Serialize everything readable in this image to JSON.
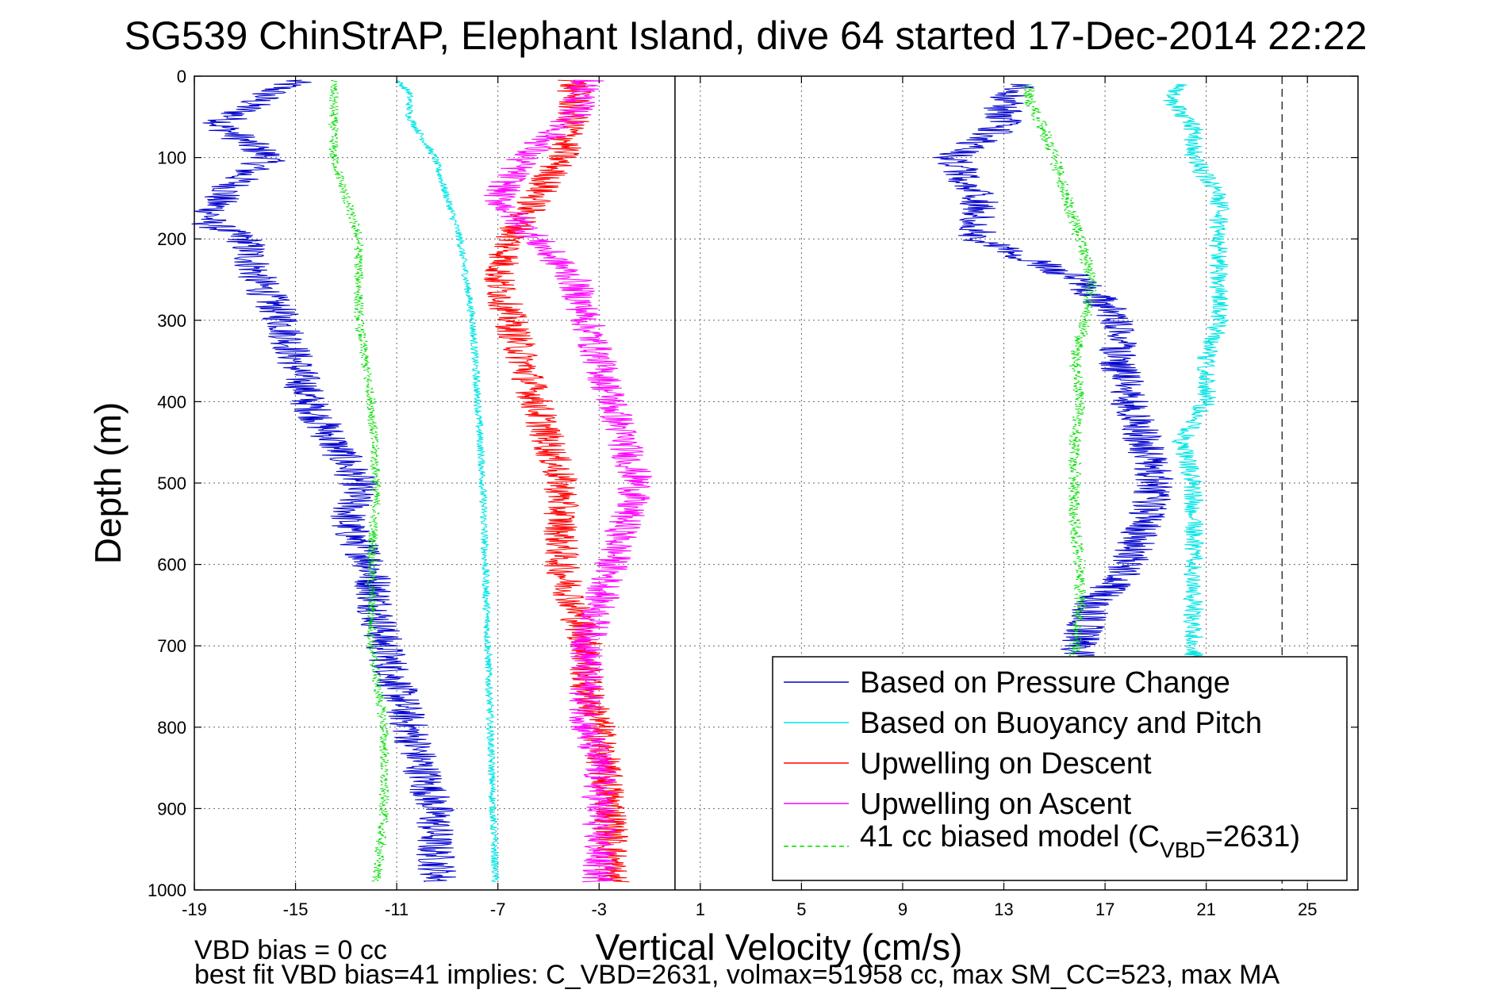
{
  "chart_data": {
    "type": "line",
    "title": "SG539 ChinStrAP, Elephant Island, dive 64 started 17-Dec-2014 22:22",
    "xlabel": "Vertical Velocity (cm/s)",
    "ylabel": "Depth (m)",
    "xlim": [
      -19,
      27
    ],
    "ylim": [
      0,
      1000
    ],
    "y_reversed": true,
    "grid": true,
    "x_ticks": [
      "-19",
      "-15",
      "-11",
      "-7",
      "-3",
      "1",
      "5",
      "9",
      "13",
      "17",
      "21",
      "25"
    ],
    "y_ticks": [
      "0",
      "100",
      "200",
      "300",
      "400",
      "500",
      "600",
      "700",
      "800",
      "900",
      "1000"
    ],
    "zero_line_x": 0,
    "dashed_reference_x": 24,
    "legend_position": "bottom-right",
    "legend": [
      {
        "label": "Based on Pressure Change",
        "color": "#0000cc",
        "dashed": false
      },
      {
        "label": "Based on Buoyancy and Pitch",
        "color": "#00e5e5",
        "dashed": false
      },
      {
        "label": "Upwelling on Descent",
        "color": "#ff0000",
        "dashed": false
      },
      {
        "label": "Upwelling on Ascent",
        "color": "#ff00ff",
        "dashed": false
      },
      {
        "label_main": "41 cc biased model (C",
        "label_sub": "VBD",
        "label_tail": "=2631)",
        "color": "#00dd00",
        "dashed": true
      }
    ],
    "series": [
      {
        "key": "pressure_descent",
        "color": "#0000cc",
        "noise": 0.8,
        "depth": [
          5,
          20,
          40,
          60,
          80,
          100,
          120,
          150,
          180,
          200,
          250,
          300,
          350,
          400,
          450,
          500,
          550,
          600,
          650,
          700,
          750,
          800,
          850,
          900,
          950,
          990
        ],
        "values": [
          -15,
          -16,
          -17,
          -18,
          -17,
          -16,
          -17,
          -18,
          -18.5,
          -17,
          -16.5,
          -15.5,
          -15,
          -14.5,
          -13.5,
          -12.5,
          -13,
          -12,
          -11.8,
          -11.5,
          -11,
          -10.5,
          -10,
          -9.5,
          -9.5,
          -9.3
        ]
      },
      {
        "key": "buoyancy_descent",
        "color": "#00e5e5",
        "noise": 0.15,
        "depth": [
          5,
          20,
          50,
          100,
          150,
          200,
          300,
          400,
          500,
          600,
          700,
          800,
          900,
          990
        ],
        "values": [
          -11,
          -10.5,
          -10.5,
          -9.5,
          -9,
          -8.5,
          -8,
          -7.8,
          -7.6,
          -7.5,
          -7.4,
          -7.3,
          -7.2,
          -7.1
        ]
      },
      {
        "key": "model_descent",
        "color": "#00dd00",
        "noise": 0.2,
        "dashed": true,
        "depth": [
          5,
          50,
          100,
          150,
          200,
          300,
          400,
          500,
          600,
          700,
          800,
          900,
          990
        ],
        "values": [
          -13.5,
          -13.5,
          -13.5,
          -13,
          -12.5,
          -12.5,
          -12,
          -11.8,
          -12,
          -12,
          -11.5,
          -11.5,
          -11.8
        ]
      },
      {
        "key": "upwelling_descent",
        "color": "#ff0000",
        "noise": 0.7,
        "depth": [
          5,
          50,
          100,
          150,
          200,
          250,
          300,
          350,
          400,
          450,
          500,
          550,
          600,
          650,
          700,
          750,
          800,
          850,
          900,
          950,
          990
        ],
        "values": [
          -4,
          -4,
          -4.5,
          -5.5,
          -6.5,
          -7,
          -6.5,
          -6,
          -5.5,
          -5,
          -4.5,
          -4.5,
          -4.5,
          -4,
          -3.5,
          -3.5,
          -3,
          -2.8,
          -2.5,
          -2.5,
          -2.5
        ]
      },
      {
        "key": "upwelling_ascent",
        "color": "#ff00ff",
        "noise": 0.7,
        "depth": [
          5,
          50,
          100,
          150,
          200,
          250,
          300,
          350,
          400,
          450,
          500,
          550,
          600,
          650,
          700,
          750,
          800,
          850,
          900,
          950,
          990
        ],
        "values": [
          -3.5,
          -4,
          -6,
          -7,
          -5.5,
          -4,
          -3.5,
          -3,
          -2.5,
          -2,
          -1.5,
          -2,
          -2.5,
          -3,
          -3.5,
          -3.5,
          -3.5,
          -3,
          -3,
          -3,
          -3
        ]
      },
      {
        "key": "pressure_ascent",
        "color": "#0000cc",
        "noise": 0.8,
        "depth": [
          720,
          700,
          650,
          600,
          550,
          500,
          450,
          400,
          350,
          300,
          250,
          200,
          150,
          100,
          60,
          30,
          10
        ],
        "values": [
          16,
          16,
          16.5,
          18,
          18.5,
          19,
          18.5,
          18,
          17.5,
          17.5,
          16,
          12,
          12,
          11,
          13,
          13,
          14
        ]
      },
      {
        "key": "buoyancy_ascent",
        "color": "#00e5e5",
        "noise": 0.4,
        "depth": [
          720,
          700,
          650,
          600,
          550,
          500,
          450,
          400,
          350,
          300,
          250,
          200,
          150,
          100,
          60,
          30,
          10
        ],
        "values": [
          20.5,
          20.5,
          20.5,
          20.5,
          20.5,
          20.5,
          20,
          21,
          21,
          21.5,
          21.5,
          21.5,
          21.5,
          20.5,
          20.5,
          19.5,
          20
        ]
      },
      {
        "key": "model_ascent",
        "color": "#00dd00",
        "noise": 0.25,
        "dashed": true,
        "depth": [
          720,
          700,
          650,
          600,
          550,
          500,
          450,
          400,
          350,
          300,
          250,
          200,
          150,
          100,
          60,
          30,
          10
        ],
        "values": [
          15.8,
          15.8,
          16,
          16,
          15.8,
          15.8,
          15.8,
          16,
          15.8,
          16.2,
          16.5,
          16,
          15.5,
          15,
          14.5,
          14,
          14
        ]
      }
    ],
    "annotations": [
      {
        "text": "VBD bias = 0 cc"
      },
      {
        "text": "best fit VBD bias=41 implies: C_VBD=2631, volmax=51958 cc, max SM_CC=523, max MA"
      }
    ]
  }
}
